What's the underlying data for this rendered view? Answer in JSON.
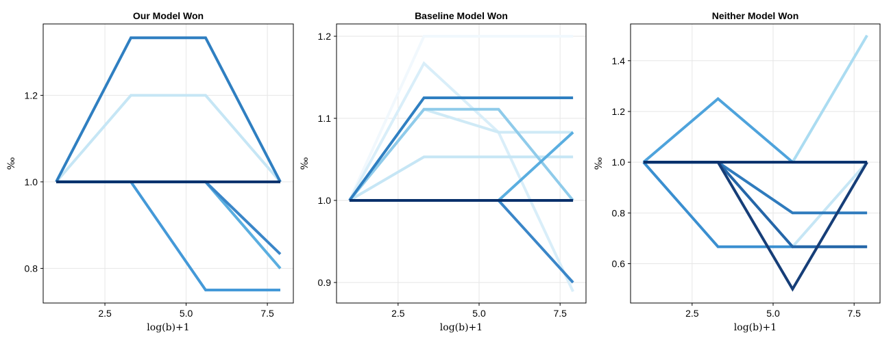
{
  "chart_data": [
    {
      "type": "line",
      "title": "Our Model Won",
      "xlabel": "log(b)+1",
      "ylabel": "‰",
      "xlim": [
        0.6,
        8.3
      ],
      "ylim": [
        0.72,
        1.365
      ],
      "xticks": [
        2.5,
        5.0,
        7.5
      ],
      "xtick_labels": [
        "2.5",
        "5.0",
        "7.5"
      ],
      "yticks": [
        0.8,
        1.0,
        1.2
      ],
      "ytick_labels": [
        "0.8",
        "1.0",
        "1.2"
      ],
      "grid": true,
      "x": [
        1.0,
        3.3,
        5.6,
        7.9
      ],
      "series": [
        {
          "values": [
            1.0,
            1.2,
            1.2,
            1.0
          ],
          "color": "#c6e6f5"
        },
        {
          "values": [
            1.0,
            1.0,
            1.0,
            0.8
          ],
          "color": "#5aaee0"
        },
        {
          "values": [
            1.0,
            1.0,
            0.75,
            0.75
          ],
          "color": "#4499d8"
        },
        {
          "values": [
            1.0,
            1.0,
            1.0,
            0.833
          ],
          "color": "#3a86c8"
        },
        {
          "values": [
            1.0,
            1.333,
            1.333,
            1.0
          ],
          "color": "#2f7fc1"
        },
        {
          "values": [
            1.0,
            1.0,
            1.0,
            1.0
          ],
          "color": "#08306b"
        }
      ]
    },
    {
      "type": "line",
      "title": "Baseline Model Won",
      "xlabel": "log(b)+1",
      "ylabel": "‰",
      "xlim": [
        0.6,
        8.3
      ],
      "ylim": [
        0.875,
        1.215
      ],
      "xticks": [
        2.5,
        5.0,
        7.5
      ],
      "xtick_labels": [
        "2.5",
        "5.0",
        "7.5"
      ],
      "yticks": [
        0.9,
        1.0,
        1.1,
        1.2
      ],
      "ytick_labels": [
        "0.9",
        "1.0",
        "1.1",
        "1.2"
      ],
      "grid": true,
      "x": [
        1.0,
        3.3,
        5.6,
        7.9
      ],
      "series": [
        {
          "values": [
            1.0,
            1.2,
            1.2,
            1.2
          ],
          "color": "#f1f8fd"
        },
        {
          "values": [
            1.0,
            1.167,
            1.083,
            0.889
          ],
          "color": "#d9eef9"
        },
        {
          "values": [
            1.0,
            1.053,
            1.053,
            1.053
          ],
          "color": "#c6e6f5"
        },
        {
          "values": [
            1.0,
            1.111,
            1.083,
            1.083
          ],
          "color": "#cfeaf6"
        },
        {
          "values": [
            1.0,
            1.111,
            1.111,
            1.0
          ],
          "color": "#8fcbea"
        },
        {
          "values": [
            1.0,
            1.0,
            1.0,
            1.083
          ],
          "color": "#5aaee0"
        },
        {
          "values": [
            1.0,
            1.0,
            1.0,
            0.9
          ],
          "color": "#3a86c8"
        },
        {
          "values": [
            1.0,
            1.125,
            1.125,
            1.125
          ],
          "color": "#2f7fc1"
        },
        {
          "values": [
            1.0,
            1.0,
            1.0,
            1.0
          ],
          "color": "#08306b"
        }
      ]
    },
    {
      "type": "line",
      "title": "Neither Model Won",
      "xlabel": "log(b)+1",
      "ylabel": "‰",
      "xlim": [
        0.6,
        8.3
      ],
      "ylim": [
        0.445,
        1.545
      ],
      "xticks": [
        2.5,
        5.0,
        7.5
      ],
      "xtick_labels": [
        "2.5",
        "5.0",
        "7.5"
      ],
      "yticks": [
        0.6,
        0.8,
        1.0,
        1.2,
        1.4
      ],
      "ytick_labels": [
        "0.6",
        "0.8",
        "1.0",
        "1.2",
        "1.4"
      ],
      "grid": true,
      "x": [
        1.0,
        3.3,
        5.6,
        7.9
      ],
      "series": [
        {
          "values": [
            1.0,
            1.0,
            1.0,
            1.5
          ],
          "color": "#abdcf1"
        },
        {
          "values": [
            1.0,
            1.0,
            0.667,
            1.0
          ],
          "color": "#c6e6f5"
        },
        {
          "values": [
            1.0,
            1.25,
            1.0,
            1.0
          ],
          "color": "#4ea3dc"
        },
        {
          "values": [
            1.0,
            0.667,
            0.667,
            0.667
          ],
          "color": "#3a8fd0"
        },
        {
          "values": [
            1.0,
            1.0,
            0.8,
            0.8
          ],
          "color": "#2f7bbd"
        },
        {
          "values": [
            1.0,
            1.0,
            0.667,
            0.667
          ],
          "color": "#2566a8"
        },
        {
          "values": [
            1.0,
            1.0,
            0.5,
            1.0
          ],
          "color": "#163e78"
        },
        {
          "values": [
            1.0,
            1.0,
            1.0,
            1.0
          ],
          "color": "#08306b"
        }
      ]
    }
  ]
}
